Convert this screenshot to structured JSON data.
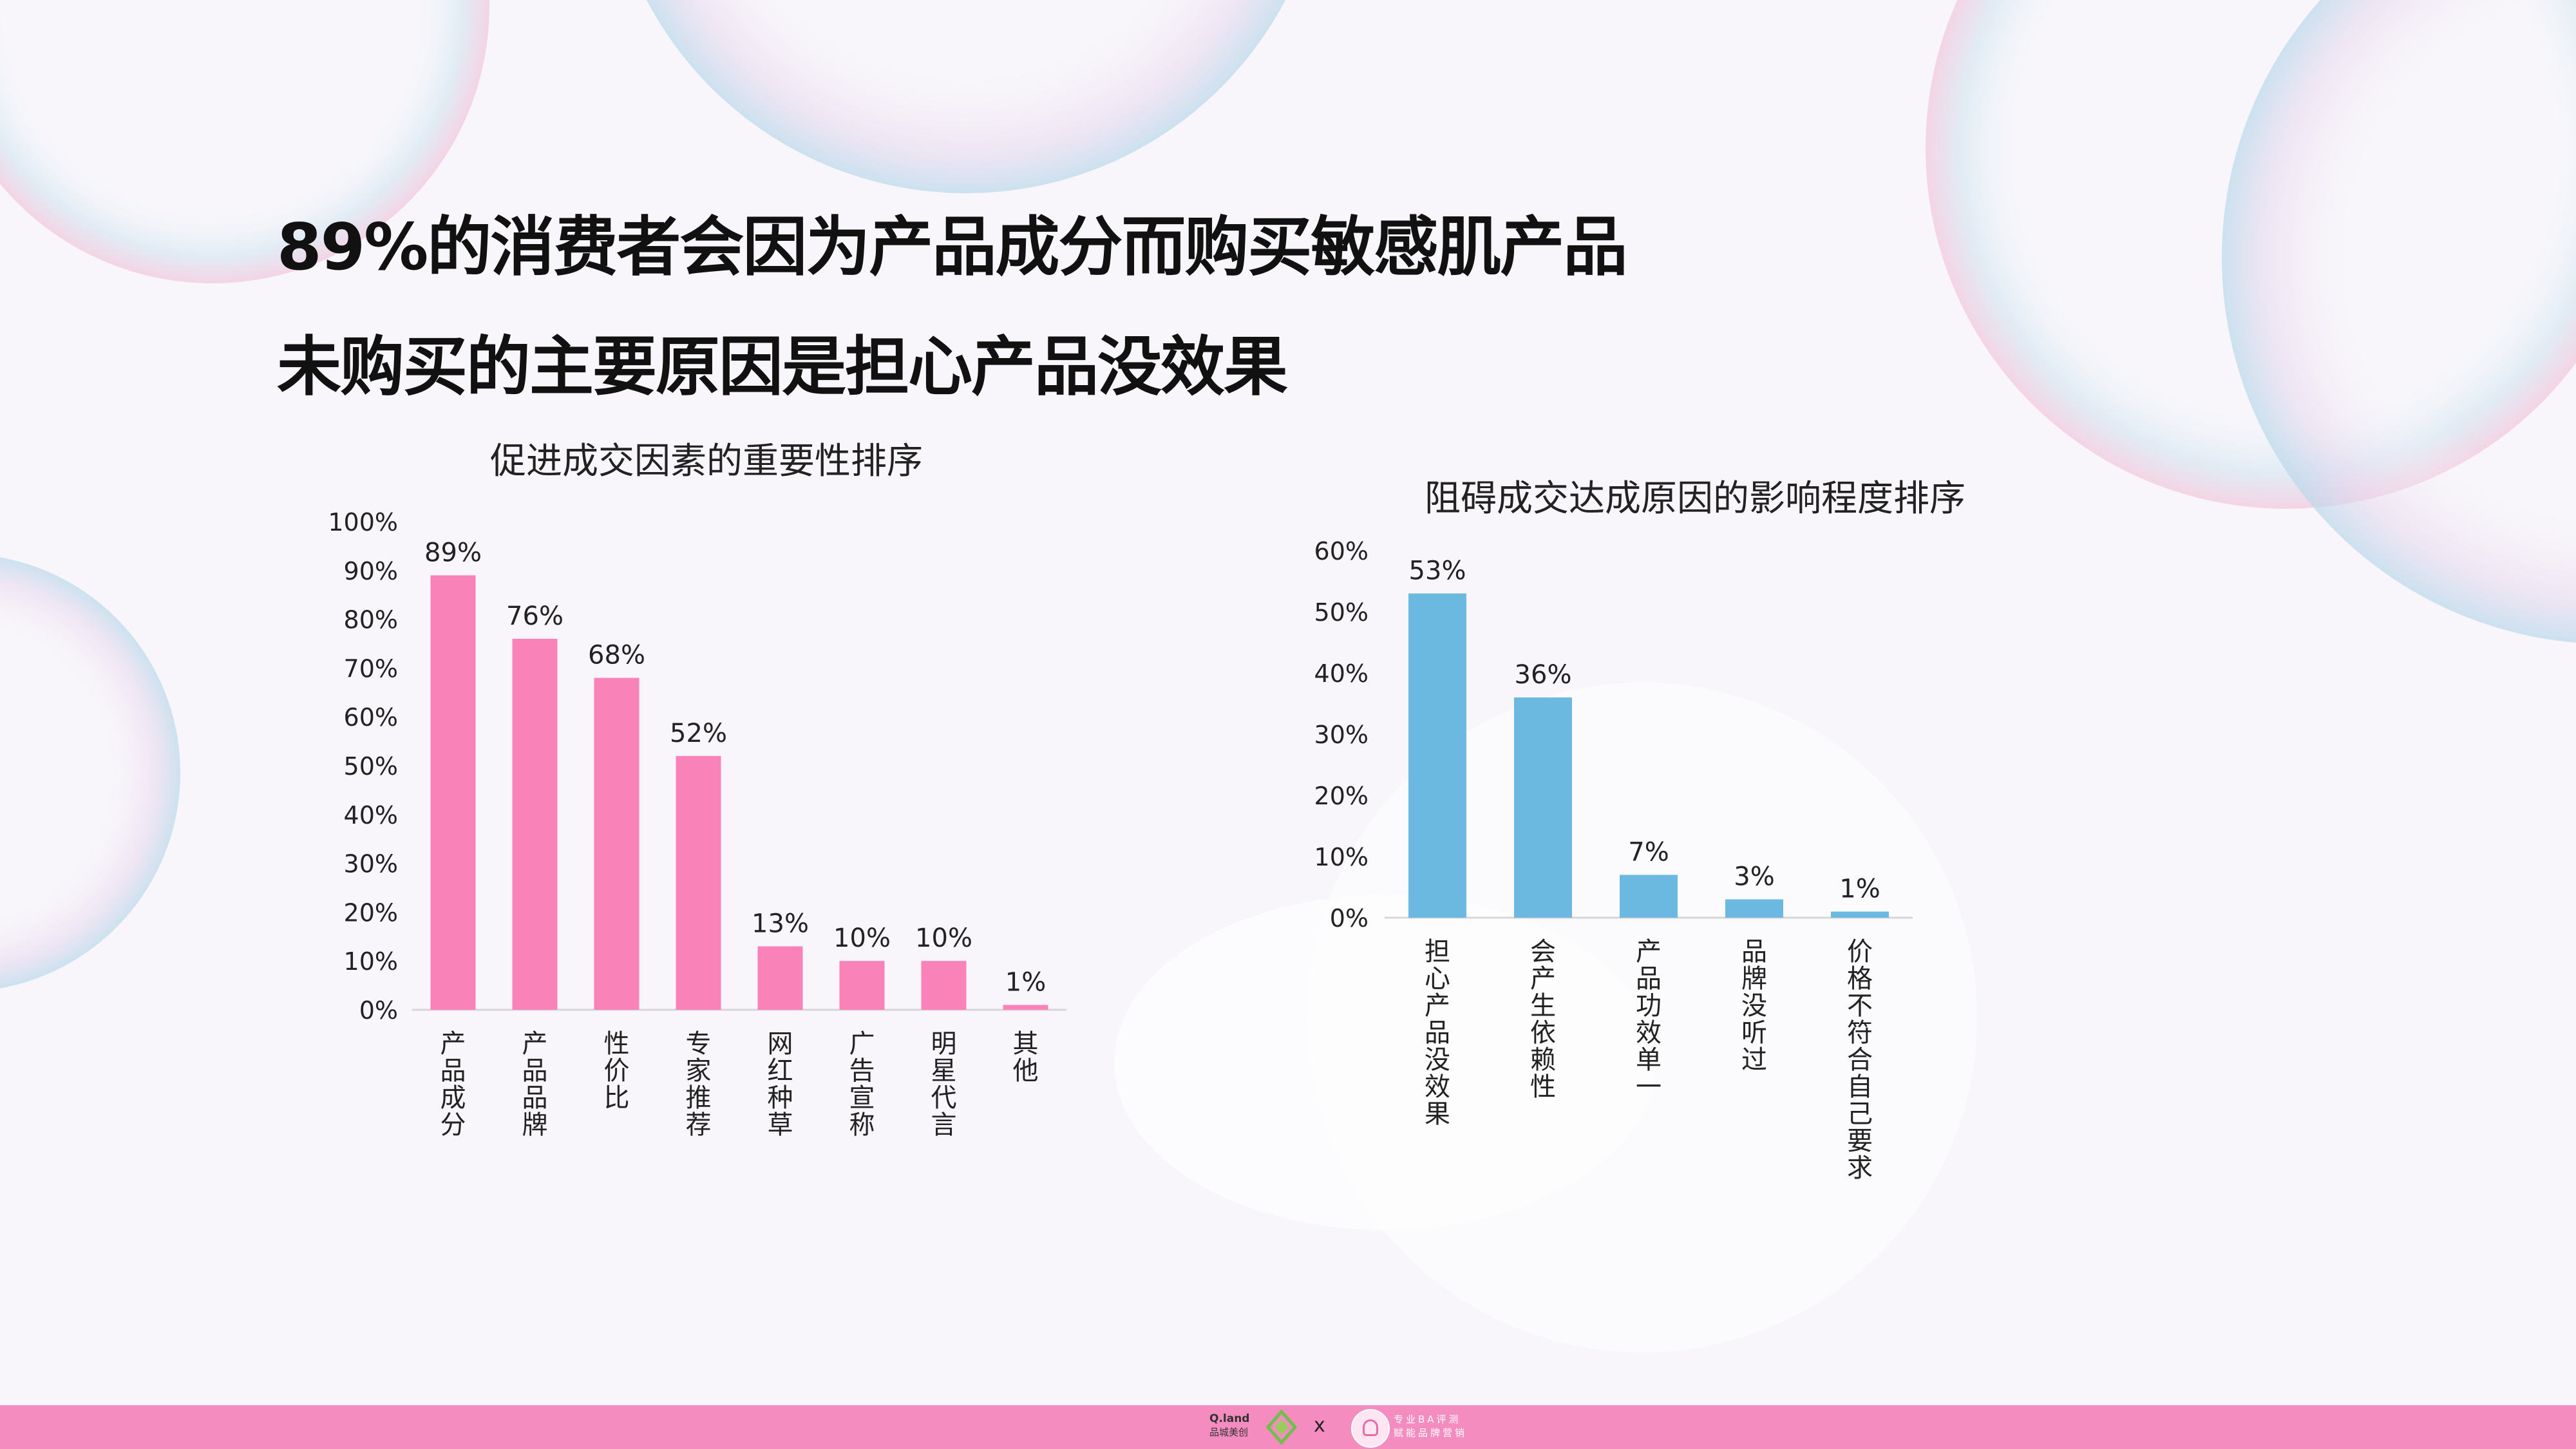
{
  "headlines": [
    "89%的消费者会因为产品成分而购买敏感肌产品",
    "未购买的主要原因是担心产品没效果"
  ],
  "chart_data": [
    {
      "type": "bar",
      "title": "促进成交因素的重要性排序",
      "categories": [
        "产品成分",
        "产品品牌",
        "性价比",
        "专家推荐",
        "网红种草",
        "广告宣称",
        "明星代言",
        "其他"
      ],
      "values": [
        89,
        76,
        68,
        52,
        13,
        10,
        10,
        1
      ],
      "value_labels": [
        "89%",
        "76%",
        "68%",
        "52%",
        "13%",
        "10%",
        "10%",
        "1%"
      ],
      "ylim": [
        0,
        100
      ],
      "yticks": [
        "0%",
        "10%",
        "20%",
        "30%",
        "40%",
        "50%",
        "60%",
        "70%",
        "80%",
        "90%",
        "100%"
      ],
      "color": "#f983b8",
      "grid": false
    },
    {
      "type": "bar",
      "title": "阻碍成交达成原因的影响程度排序",
      "categories": [
        "担心产品没效果",
        "会产生依赖性",
        "产品功效单一",
        "品牌没听过",
        "价格不符合自己要求"
      ],
      "values": [
        53,
        36,
        7,
        3,
        1
      ],
      "value_labels": [
        "53%",
        "36%",
        "7%",
        "3%",
        "1%"
      ],
      "ylim": [
        0,
        60
      ],
      "yticks": [
        "0%",
        "10%",
        "20%",
        "30%",
        "40%",
        "50%",
        "60%"
      ],
      "color": "#6bb8e0",
      "grid": false
    }
  ],
  "footer": {
    "brand_left": "Q.land",
    "brand_left_sub": "品城美创",
    "separator": "x",
    "brand_right_line1": "专业BA评测",
    "brand_right_line2": "赋能品牌营销",
    "bar_color": "#f48cc0"
  }
}
